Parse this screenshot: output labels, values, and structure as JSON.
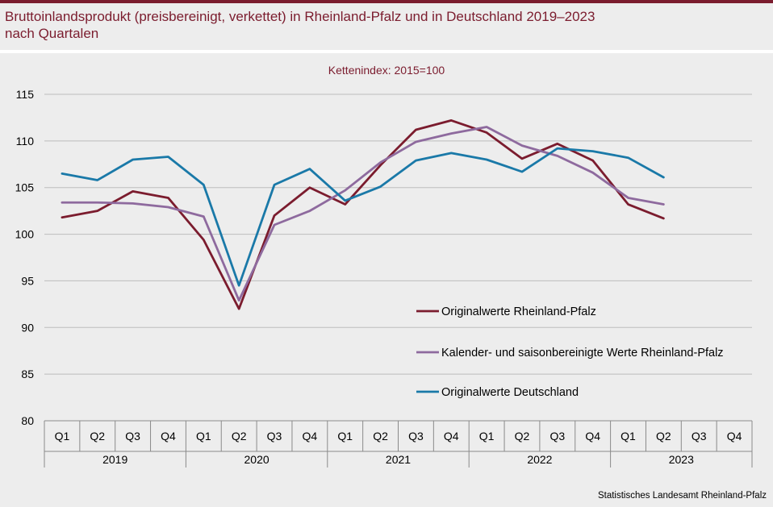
{
  "header": {
    "title_line1": "Bruttoinlandsprodukt (preisbereinigt, verkettet) in Rheinland-Pfalz und in Deutschland 2019–2023",
    "title_line2": "nach Quartalen",
    "accent_color": "#7b1c2e"
  },
  "footer": {
    "source": "Statistisches Landesamt  Rheinland-Pfalz"
  },
  "chart_data": {
    "type": "line",
    "title": "Bruttoinlandsprodukt (preisbereinigt, verkettet) in Rheinland-Pfalz und in Deutschland 2019–2023 nach Quartalen",
    "subtitle": "Kettenindex:  2015=100",
    "xlabel": "",
    "ylabel": "",
    "ylim": [
      80,
      115
    ],
    "yticks": [
      80,
      85,
      90,
      95,
      100,
      105,
      110,
      115
    ],
    "grid": true,
    "legend_position": "bottom-right",
    "categories": [
      "Q1",
      "Q2",
      "Q3",
      "Q4",
      "Q1",
      "Q2",
      "Q3",
      "Q4",
      "Q1",
      "Q2",
      "Q3",
      "Q4",
      "Q1",
      "Q2",
      "Q3",
      "Q4",
      "Q1",
      "Q2",
      "Q3",
      "Q4"
    ],
    "years": [
      "2019",
      "2020",
      "2021",
      "2022",
      "2023"
    ],
    "series": [
      {
        "name": "Originalwerte Rheinland-Pfalz",
        "color": "#7b1c2e",
        "values": [
          101.8,
          102.5,
          104.6,
          103.9,
          99.4,
          92.0,
          102.0,
          105.0,
          103.2,
          107.4,
          111.2,
          112.2,
          110.9,
          108.1,
          109.7,
          107.9,
          103.2,
          101.7,
          null,
          null
        ]
      },
      {
        "name": "Kalender- und saisonbereinigte Werte Rheinland-Pfalz",
        "color": "#8e6a9e",
        "values": [
          103.4,
          103.4,
          103.3,
          102.9,
          101.9,
          92.9,
          101.0,
          102.5,
          104.7,
          107.7,
          109.9,
          110.8,
          111.5,
          109.5,
          108.4,
          106.6,
          103.9,
          103.2,
          null,
          null
        ]
      },
      {
        "name": "Originalwerte Deutschland",
        "color": "#1a79a8",
        "values": [
          106.5,
          105.8,
          108.0,
          108.3,
          105.3,
          94.5,
          105.3,
          107.0,
          103.6,
          105.1,
          107.9,
          108.7,
          108.0,
          106.7,
          109.2,
          108.9,
          108.2,
          106.1,
          null,
          null
        ]
      }
    ]
  }
}
